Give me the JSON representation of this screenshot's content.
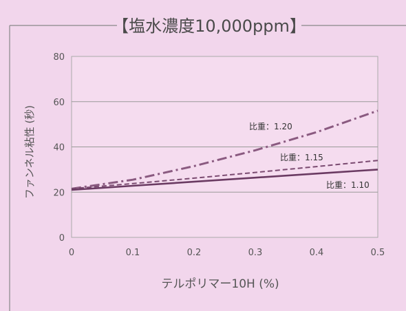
{
  "chart_data": {
    "type": "line",
    "title": "【塩水濃度10,000ppm】",
    "xlabel": "テルポリマー10H (%)",
    "ylabel": "ファンネル粘性 (秒)",
    "xlim": [
      0,
      0.5
    ],
    "ylim": [
      0,
      80
    ],
    "x_ticks": [
      "0",
      "0.1",
      "0.2",
      "0.3",
      "0.4",
      "0.5"
    ],
    "y_ticks": [
      "0",
      "20",
      "40",
      "60",
      "80"
    ],
    "grid": "horizontal",
    "series": [
      {
        "name": "比重：1.20",
        "style": "dash-dot",
        "color": "#8a5a80",
        "x": [
          0,
          0.1,
          0.2,
          0.3,
          0.4,
          0.5
        ],
        "y": [
          21.5,
          25.5,
          31.5,
          38.5,
          46.5,
          56
        ]
      },
      {
        "name": "比重：1.15",
        "style": "dashed",
        "color": "#7a4a70",
        "x": [
          0,
          0.1,
          0.2,
          0.3,
          0.4,
          0.5
        ],
        "y": [
          21.5,
          23.8,
          26.2,
          28.7,
          31.3,
          34
        ]
      },
      {
        "name": "比重：1.10",
        "style": "solid",
        "color": "#6a3a62",
        "x": [
          0,
          0.1,
          0.2,
          0.3,
          0.4,
          0.5
        ],
        "y": [
          21,
          22.8,
          24.6,
          26.4,
          28.2,
          30
        ]
      }
    ]
  }
}
